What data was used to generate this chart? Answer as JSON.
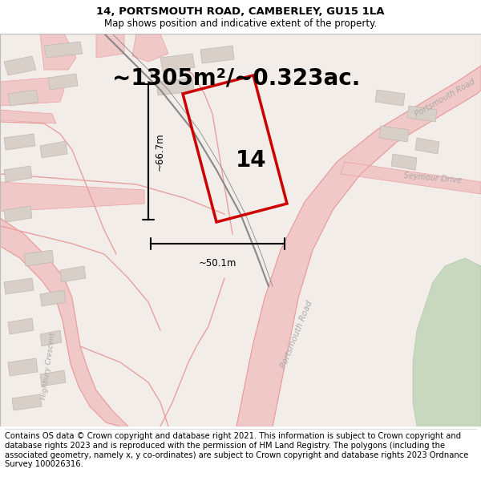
{
  "title": "14, PORTSMOUTH ROAD, CAMBERLEY, GU15 1LA",
  "subtitle": "Map shows position and indicative extent of the property.",
  "area_text": "~1305m²/~0.323ac.",
  "label_14": "14",
  "dim_vertical": "~66.7m",
  "dim_horizontal": "~50.1m",
  "footer": "Contains OS data © Crown copyright and database right 2021. This information is subject to Crown copyright and database rights 2023 and is reproduced with the permission of HM Land Registry. The polygons (including the associated geometry, namely x, y co-ordinates) are subject to Crown copyright and database rights 2023 Ordnance Survey 100026316.",
  "bg_map_color": "#f2ede8",
  "road_color": "#f0c8c8",
  "road_edge_color": "#e8a0a0",
  "building_color": "#d8d0c8",
  "building_edge_color": "#c0b8b0",
  "green_color": "#c8d8be",
  "red_polygon_color": "#cc0000",
  "title_fontsize": 9.5,
  "subtitle_fontsize": 8.5,
  "area_fontsize": 20,
  "label_fontsize": 20,
  "dim_fontsize": 8.5,
  "footer_fontsize": 7.2,
  "road_label_color": "#aaaaaa",
  "figsize": [
    6.0,
    6.25
  ],
  "dpi": 100
}
